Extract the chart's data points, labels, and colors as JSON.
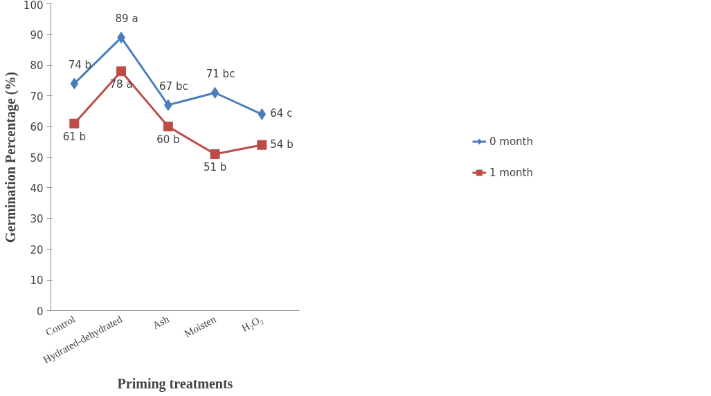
{
  "chart_data": {
    "type": "line",
    "xlabel": "Priming treatments",
    "ylabel": "Germination Percentage (%)",
    "categories": [
      "Control",
      "Hydrated-dehydrated",
      "Ash",
      "Moisten",
      "H₂O₂"
    ],
    "series": [
      {
        "name": "0 month",
        "color": "#4a7ebb",
        "marker": "diamond",
        "values": [
          74,
          89,
          67,
          71,
          64
        ],
        "value_labels": [
          "74 b",
          "89 a",
          "67 bc",
          "71 bc",
          "64 c"
        ]
      },
      {
        "name": "1 month",
        "color": "#be4b48",
        "marker": "square",
        "values": [
          61,
          78,
          60,
          51,
          54
        ],
        "value_labels": [
          "61 b",
          "78 a",
          "60 b",
          "51 b",
          "54 b"
        ]
      }
    ],
    "ylim": [
      0,
      100
    ],
    "yticks": [
      0,
      10,
      20,
      30,
      40,
      50,
      60,
      70,
      80,
      90,
      100
    ],
    "grid": false,
    "legend": "right"
  }
}
